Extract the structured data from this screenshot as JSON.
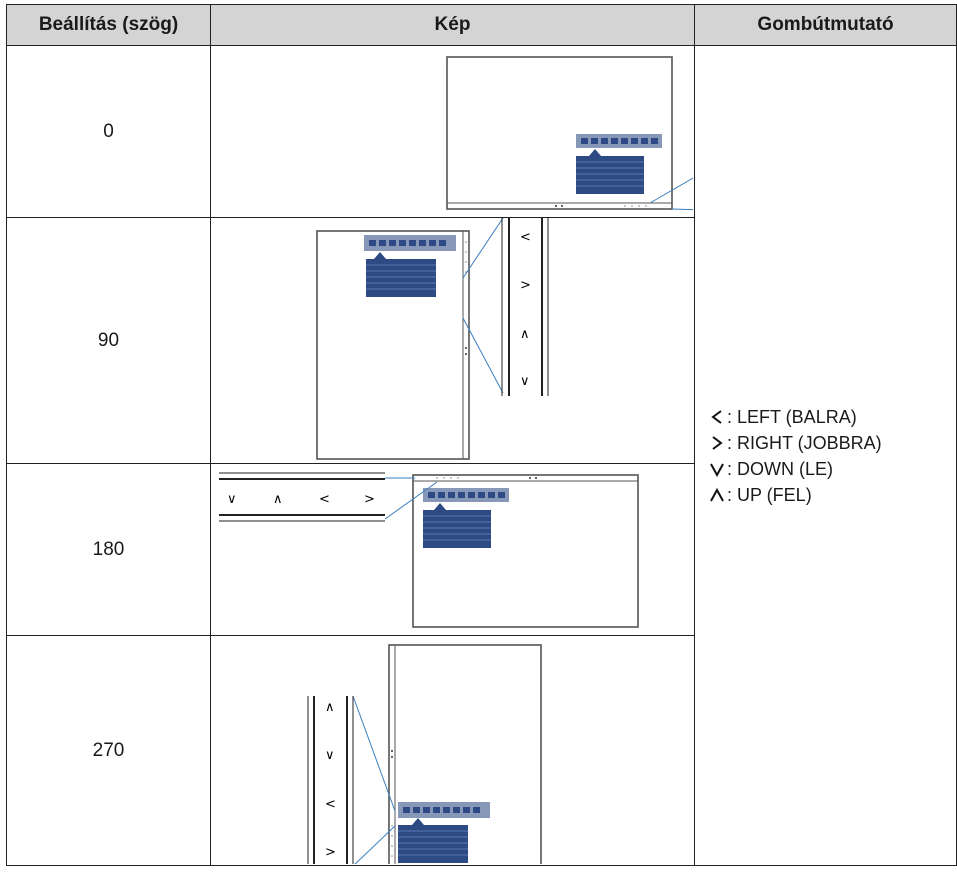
{
  "table": {
    "headers": {
      "setting": "Beállítás (szög)",
      "image": "Kép",
      "guide": "Gombútmutató"
    },
    "rows": [
      {
        "angle": "0"
      },
      {
        "angle": "90"
      },
      {
        "angle": "180"
      },
      {
        "angle": "270"
      }
    ],
    "legend": [
      {
        "icon": "chevron-left-icon",
        "text": ": LEFT (BALRA)"
      },
      {
        "icon": "chevron-right-icon",
        "text": ": RIGHT (JOBBRA)"
      },
      {
        "icon": "chevron-down-icon",
        "text": ": DOWN (LE)"
      },
      {
        "icon": "chevron-up-icon",
        "text": ": UP (FEL)"
      }
    ]
  },
  "colors": {
    "header_bg": "#d4d4d4",
    "menu_bar": "#8797b8",
    "menu_body": "#2d4a85",
    "callout_line": "#3a7fc1"
  }
}
